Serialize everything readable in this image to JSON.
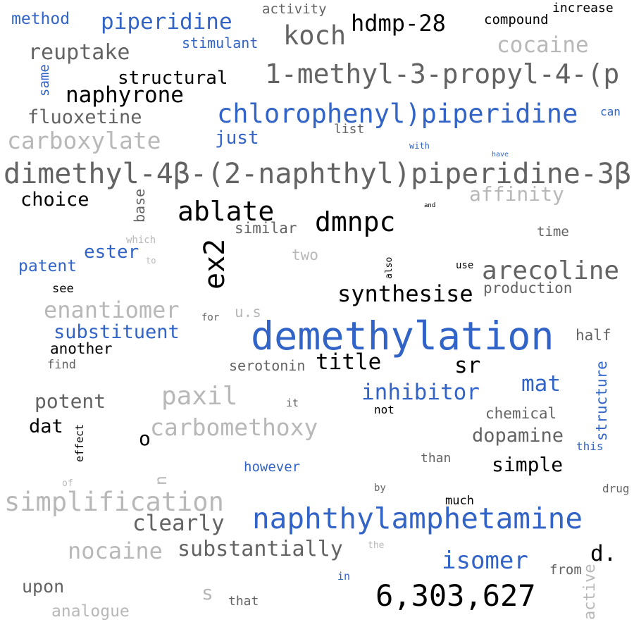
{
  "colors": {
    "blue": "#3264c8",
    "dark": "#636363",
    "black": "#000000",
    "light": "#b8b8b8"
  },
  "words": [
    "method",
    "piperidine",
    "activity",
    "koch",
    "hdmp-28",
    "compound",
    "increase",
    "stimulant",
    "cocaine",
    "reuptake",
    "1-methyl-3-propyl-4-(p",
    "same",
    "structural",
    "naphyrone",
    "fluoxetine",
    "chlorophenyl)piperidine",
    "can",
    "list",
    "carboxylate",
    "just",
    "with",
    "have",
    "dimethyl-4β-(2-naphthyl)piperidine-3β",
    "affinity",
    "choice",
    "base",
    "and",
    "ablate",
    "dmnpc",
    "similar",
    "time",
    "which",
    "ex2",
    "ester",
    "two",
    "also",
    "patent",
    "to",
    "use",
    "arecoline",
    "see",
    "synthesise",
    "production",
    "enantiomer",
    "for",
    "u.s",
    "demethylation",
    "substituent",
    "half",
    "another",
    "find",
    "serotonin",
    "title",
    "sr",
    "structure",
    "inhibitor",
    "mat",
    "potent",
    "paxil",
    "not",
    "it",
    "chemical",
    "dat",
    "carbomethoxy",
    "o",
    "dopamine",
    "effect",
    "this",
    "than",
    "simple",
    "n",
    "however",
    "of",
    "by",
    "drug",
    "simplification",
    "much",
    "naphthylamphetamine",
    "clearly",
    "nocaine",
    "substantially",
    "the",
    "d.",
    "isomer",
    "from",
    "upon",
    "in",
    "s",
    "active",
    "6,303,627",
    "that",
    "analogue"
  ]
}
